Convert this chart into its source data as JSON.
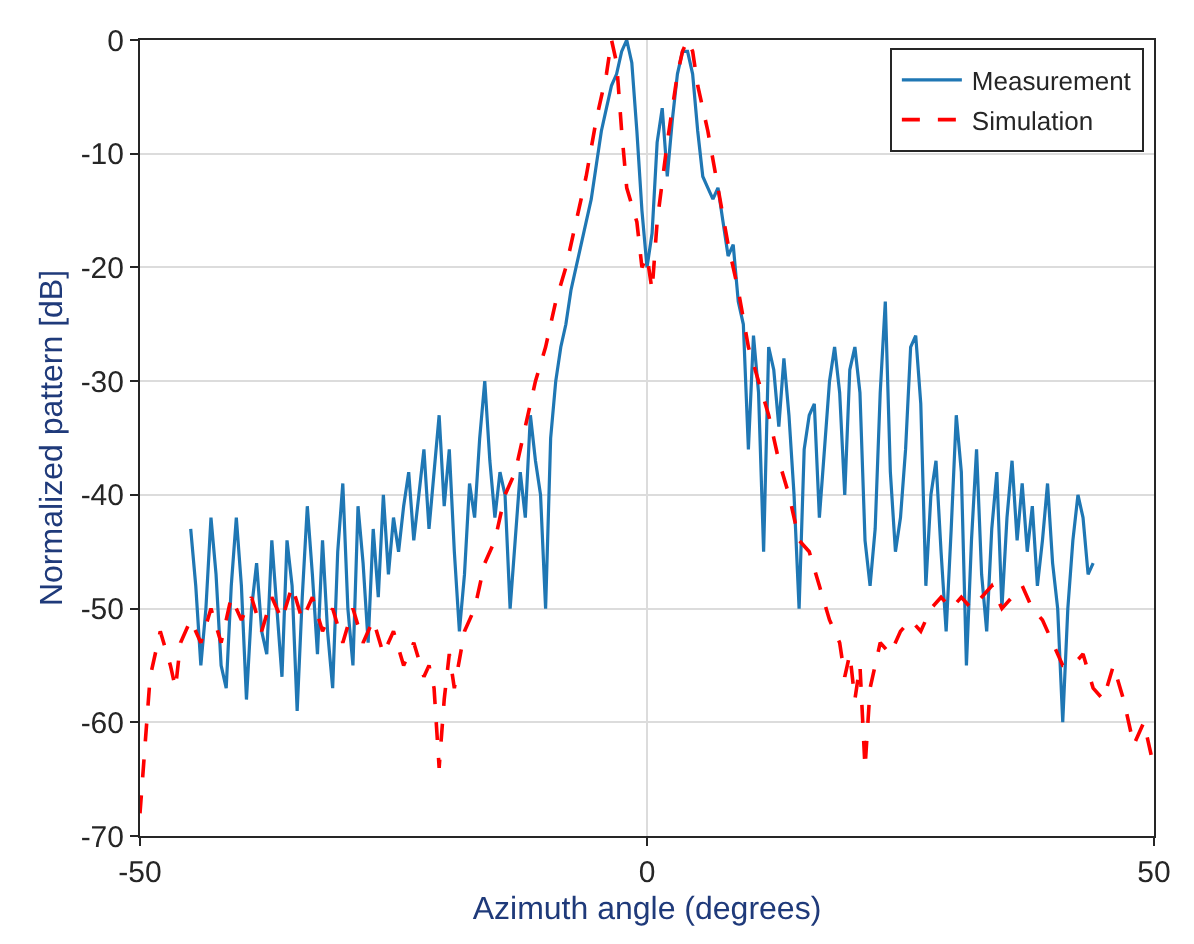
{
  "chart_data": {
    "type": "line",
    "xlabel": "Azimuth angle (degrees)",
    "ylabel": "Normalized pattern [dB]",
    "xlim": [
      -50,
      50
    ],
    "xticks": [
      -50,
      0,
      50
    ],
    "ylim": [
      -70,
      0
    ],
    "yticks": [
      -70,
      -60,
      -50,
      -40,
      -30,
      -20,
      -10,
      0
    ],
    "grid": true,
    "legend": "top right",
    "series": [
      {
        "name": "Measurement",
        "color": "#1f77b4",
        "line_style": "solid",
        "x": [
          -45,
          -44.5,
          -44,
          -43.5,
          -43,
          -42.5,
          -42,
          -41.5,
          -41,
          -40.5,
          -40,
          -39.5,
          -39,
          -38.5,
          -38,
          -37.5,
          -37,
          -36.5,
          -36,
          -35.5,
          -35,
          -34.5,
          -34,
          -33.5,
          -33,
          -32.5,
          -32,
          -31.5,
          -31,
          -30.5,
          -30,
          -29.5,
          -29,
          -28.5,
          -28,
          -27.5,
          -27,
          -26.5,
          -26,
          -25.5,
          -25,
          -24.5,
          -24,
          -23.5,
          -23,
          -22.5,
          -22,
          -21.5,
          -21,
          -20.5,
          -20,
          -19.5,
          -19,
          -18.5,
          -18,
          -17.5,
          -17,
          -16.5,
          -16,
          -15.5,
          -15,
          -14.5,
          -14,
          -13.5,
          -13,
          -12.5,
          -12,
          -11.5,
          -11,
          -10.5,
          -10,
          -9.5,
          -9,
          -8.5,
          -8,
          -7.5,
          -7,
          -6.5,
          -6,
          -5.5,
          -5,
          -4.5,
          -4,
          -3.5,
          -3,
          -2.5,
          -2,
          -1.5,
          -1,
          -0.5,
          0,
          0.5,
          1,
          1.5,
          2,
          2.5,
          3,
          3.5,
          4,
          4.5,
          5,
          5.5,
          6,
          6.5,
          7,
          7.5,
          8,
          8.5,
          9,
          9.5,
          10,
          10.5,
          11,
          11.5,
          12,
          12.5,
          13,
          13.5,
          14,
          14.5,
          15,
          15.5,
          16,
          16.5,
          17,
          17.5,
          18,
          18.5,
          19,
          19.5,
          20,
          20.5,
          21,
          21.5,
          22,
          22.5,
          23,
          23.5,
          24,
          24.5,
          25,
          25.5,
          26,
          26.5,
          27,
          27.5,
          28,
          28.5,
          29,
          29.5,
          30,
          30.5,
          31,
          31.5,
          32,
          32.5,
          33,
          33.5,
          34,
          34.5,
          35,
          35.5,
          36,
          36.5,
          37,
          37.5,
          38,
          38.5,
          39,
          39.5,
          40,
          40.5,
          41,
          41.5,
          42,
          42.5,
          43,
          43.5,
          44
        ],
        "values": [
          -43,
          -48,
          -55,
          -50,
          -42,
          -47,
          -55,
          -57,
          -48,
          -42,
          -48,
          -58,
          -50,
          -46,
          -52,
          -54,
          -44,
          -50,
          -56,
          -44,
          -48,
          -59,
          -49,
          -41,
          -47,
          -54,
          -44,
          -52,
          -57,
          -45,
          -39,
          -50,
          -55,
          -41,
          -46,
          -53,
          -43,
          -49,
          -40,
          -47,
          -42,
          -45,
          -41,
          -38,
          -44,
          -40,
          -36,
          -43,
          -38,
          -33,
          -41,
          -36,
          -45,
          -52,
          -47,
          -39,
          -42,
          -35,
          -30,
          -37,
          -42,
          -38,
          -40,
          -50,
          -44,
          -38,
          -42,
          -33,
          -37,
          -40,
          -50,
          -35,
          -30,
          -27,
          -25,
          -22,
          -20,
          -18,
          -16,
          -14,
          -11,
          -8,
          -6,
          -4,
          -3,
          -1,
          0,
          -2,
          -8,
          -15,
          -20,
          -17,
          -9,
          -6,
          -12,
          -7,
          -3,
          -1,
          -1,
          -3,
          -8,
          -12,
          -13,
          -14,
          -13,
          -16,
          -19,
          -18,
          -23,
          -25,
          -36,
          -26,
          -31,
          -45,
          -27,
          -29,
          -34,
          -28,
          -33,
          -40,
          -50,
          -36,
          -33,
          -32,
          -42,
          -36,
          -30,
          -27,
          -31,
          -40,
          -29,
          -27,
          -31,
          -44,
          -48,
          -43,
          -31,
          -23,
          -38,
          -45,
          -42,
          -36,
          -27,
          -26,
          -32,
          -48,
          -40,
          -37,
          -45,
          -52,
          -43,
          -33,
          -38,
          -55,
          -44,
          -36,
          -47,
          -52,
          -43,
          -38,
          -50,
          -42,
          -37,
          -44,
          -39,
          -45,
          -41,
          -48,
          -44,
          -39,
          -46,
          -50,
          -60,
          -50,
          -44,
          -40,
          -42,
          -47,
          -46
        ]
      },
      {
        "name": "Simulation",
        "color": "#ff0000",
        "line_style": "dashed",
        "x": [
          -50,
          -49.5,
          -49,
          -48,
          -47,
          -46.5,
          -46,
          -45,
          -44,
          -43,
          -42,
          -41,
          -40,
          -39,
          -38,
          -37,
          -36,
          -35,
          -34,
          -33,
          -32,
          -31,
          -30,
          -29,
          -28,
          -27,
          -26,
          -25,
          -24,
          -23,
          -22,
          -21.5,
          -21,
          -20.5,
          -20,
          -19.5,
          -19,
          -18,
          -17,
          -16,
          -15,
          -14,
          -13,
          -12,
          -11,
          -10,
          -9,
          -8,
          -7,
          -6,
          -5,
          -4,
          -3.5,
          -3,
          -2.5,
          -2,
          -1,
          -0.5,
          0,
          0.5,
          1,
          2,
          3,
          3.5,
          4,
          4.5,
          5,
          6,
          7,
          8,
          9,
          10,
          11,
          12,
          13,
          14,
          15,
          16,
          17,
          18,
          19,
          19.5,
          20,
          20.5,
          21,
          21.5,
          22,
          22.5,
          23,
          24,
          25,
          26,
          27,
          28,
          29,
          30,
          31,
          32,
          33,
          34,
          35,
          36,
          37,
          38,
          39,
          40,
          41,
          42,
          43,
          44,
          45,
          46,
          47,
          48,
          49,
          50
        ],
        "values": [
          -68,
          -62,
          -56,
          -52,
          -55,
          -57,
          -53,
          -51,
          -53,
          -50,
          -53,
          -49,
          -51,
          -49,
          -52,
          -49,
          -51,
          -48,
          -51,
          -49,
          -52,
          -50,
          -53,
          -50,
          -53,
          -51,
          -54,
          -52,
          -55,
          -53,
          -56,
          -55,
          -57,
          -64,
          -58,
          -54,
          -57,
          -52,
          -50,
          -46,
          -44,
          -40,
          -38,
          -34,
          -30,
          -27,
          -23,
          -20,
          -16,
          -12,
          -7,
          -3,
          0,
          -2,
          -8,
          -13,
          -16,
          -20,
          -19,
          -22,
          -16,
          -9,
          -3,
          -1,
          0,
          -1,
          -4,
          -8,
          -13,
          -18,
          -22,
          -27,
          -30,
          -33,
          -37,
          -40,
          -44,
          -45,
          -48,
          -51,
          -53,
          -56,
          -54,
          -58,
          -55,
          -64,
          -57,
          -55,
          -53,
          -54,
          -52,
          -51,
          -52,
          -50,
          -49,
          -50,
          -49,
          -50,
          -49,
          -48,
          -50,
          -49,
          -48,
          -50,
          -51,
          -53,
          -55,
          -55,
          -54,
          -57,
          -58,
          -55,
          -58,
          -62,
          -60,
          -64
        ]
      }
    ]
  }
}
